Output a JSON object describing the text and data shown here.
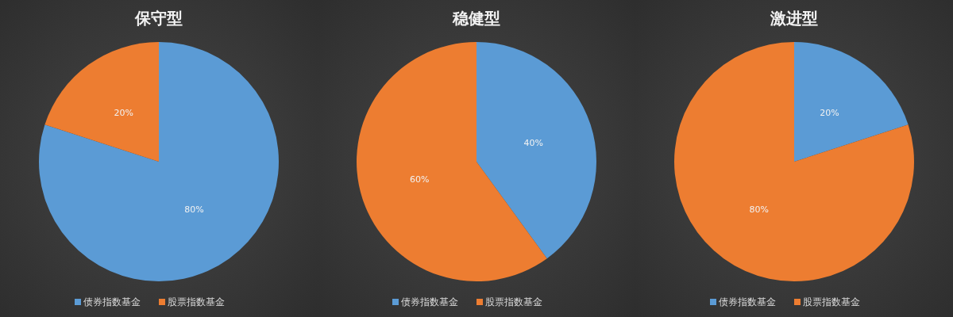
{
  "chart_data": [
    {
      "type": "pie",
      "title": "保守型",
      "categories": [
        "债券指数基金",
        "股票指数基金"
      ],
      "values": [
        80,
        20
      ],
      "value_labels": [
        "80%",
        "20%"
      ],
      "colors": [
        "#5b9bd5",
        "#ed7d31"
      ],
      "legend": "bottom"
    },
    {
      "type": "pie",
      "title": "稳健型",
      "categories": [
        "债券指数基金",
        "股票指数基金"
      ],
      "values": [
        40,
        60
      ],
      "value_labels": [
        "40%",
        "60%"
      ],
      "colors": [
        "#5b9bd5",
        "#ed7d31"
      ],
      "legend": "bottom"
    },
    {
      "type": "pie",
      "title": "激进型",
      "categories": [
        "债券指数基金",
        "股票指数基金"
      ],
      "values": [
        20,
        80
      ],
      "value_labels": [
        "20%",
        "80%"
      ],
      "colors": [
        "#5b9bd5",
        "#ed7d31"
      ],
      "legend": "bottom"
    }
  ]
}
